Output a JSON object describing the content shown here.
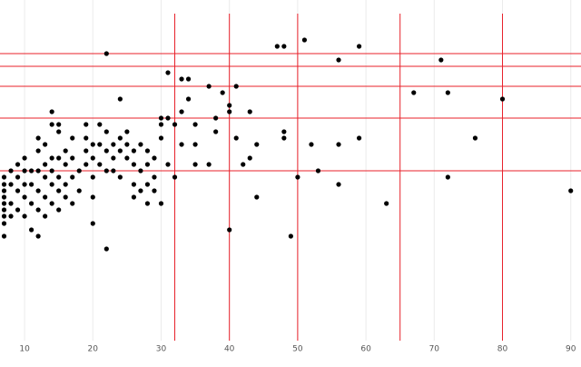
{
  "chart_data": {
    "type": "scatter",
    "x": [
      22,
      51,
      47,
      48,
      59,
      56,
      71,
      31,
      33,
      34,
      37,
      41,
      39,
      67,
      72,
      24,
      80,
      34,
      40,
      40,
      43,
      33,
      31,
      30,
      38,
      35,
      48,
      48,
      38,
      76,
      59,
      52,
      56,
      41,
      44,
      35,
      33,
      30,
      43,
      42,
      37,
      35,
      32,
      53,
      50,
      72,
      56,
      90,
      44,
      63,
      40,
      49,
      22,
      20,
      7,
      7,
      7,
      7,
      7,
      7,
      7,
      7,
      7,
      8,
      8,
      8,
      8,
      9,
      9,
      9,
      9,
      10,
      10,
      10,
      10,
      10,
      11,
      11,
      11,
      11,
      12,
      12,
      12,
      12,
      12,
      12,
      13,
      13,
      13,
      13,
      13,
      14,
      14,
      14,
      14,
      14,
      14,
      15,
      15,
      15,
      15,
      15,
      15,
      16,
      16,
      16,
      16,
      17,
      17,
      17,
      17,
      18,
      18,
      19,
      19,
      19,
      19,
      20,
      20,
      20,
      20,
      21,
      21,
      21,
      22,
      22,
      22,
      23,
      23,
      23,
      24,
      24,
      24,
      25,
      25,
      25,
      26,
      26,
      26,
      26,
      27,
      27,
      27,
      28,
      28,
      28,
      28,
      29,
      29,
      29,
      30,
      30,
      31,
      32
    ],
    "y": [
      311,
      326,
      319,
      319,
      319,
      304,
      304,
      290,
      283,
      283,
      275,
      275,
      268,
      268,
      268,
      261,
      261,
      261,
      254,
      247,
      247,
      247,
      240,
      240,
      240,
      233,
      225,
      218,
      225,
      218,
      218,
      211,
      211,
      218,
      211,
      211,
      211,
      218,
      196,
      189,
      189,
      189,
      175,
      182,
      175,
      175,
      167,
      160,
      153,
      146,
      117,
      110,
      96,
      124,
      175,
      167,
      160,
      153,
      146,
      139,
      132,
      124,
      110,
      182,
      167,
      146,
      132,
      189,
      175,
      160,
      139,
      196,
      182,
      167,
      153,
      132,
      182,
      167,
      146,
      117,
      218,
      204,
      182,
      160,
      139,
      110,
      211,
      189,
      175,
      153,
      132,
      247,
      233,
      196,
      182,
      167,
      146,
      233,
      225,
      196,
      175,
      160,
      139,
      204,
      189,
      167,
      153,
      218,
      196,
      175,
      146,
      182,
      160,
      233,
      218,
      204,
      189,
      211,
      196,
      175,
      153,
      233,
      211,
      189,
      225,
      204,
      182,
      211,
      196,
      182,
      218,
      204,
      175,
      225,
      211,
      196,
      204,
      189,
      167,
      153,
      211,
      182,
      160,
      204,
      189,
      167,
      146,
      196,
      175,
      160,
      233,
      146,
      189,
      233
    ],
    "color": "#000000",
    "xlim": [
      6.4,
      91.5
    ],
    "ylim": [
      -5,
      370
    ],
    "xticks": [
      10,
      20,
      30,
      40,
      50,
      60,
      70,
      80,
      90
    ],
    "vlines": [
      32,
      40,
      50,
      65,
      80
    ],
    "hlines": [
      311,
      297,
      275,
      240,
      182
    ],
    "line_color": "#e8202a",
    "grid": true
  }
}
